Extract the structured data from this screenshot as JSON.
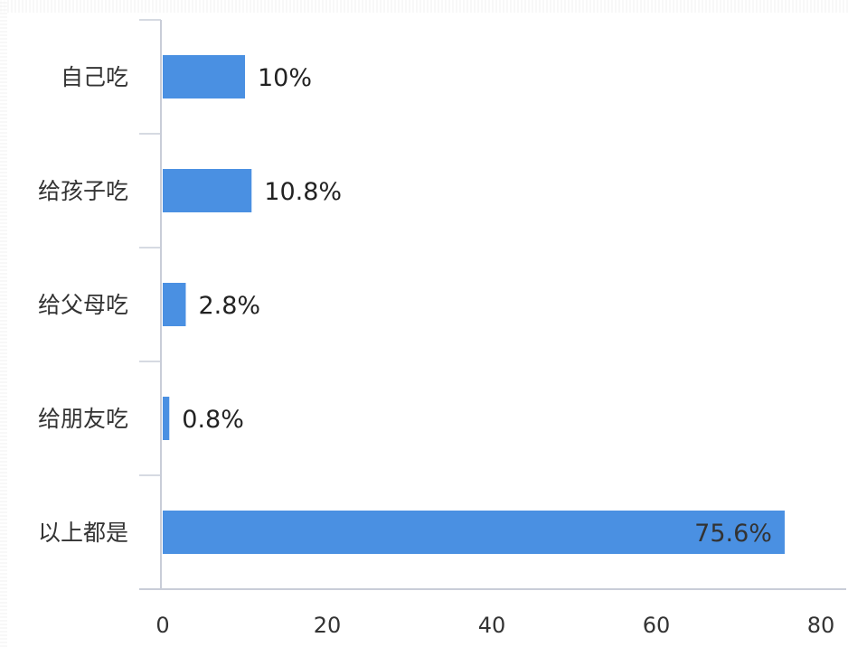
{
  "chart_data": {
    "type": "bar",
    "orientation": "horizontal",
    "title": "",
    "xlabel": "",
    "ylabel": "",
    "categories": [
      "自己吃",
      "给孩子吃",
      "给父母吃",
      "给朋友吃",
      "以上都是"
    ],
    "values": [
      10,
      10.8,
      2.8,
      0.8,
      75.6
    ],
    "data_labels": [
      "10%",
      "10.8%",
      "2.8%",
      "0.8%",
      "75.6%"
    ],
    "xlim": [
      0,
      80
    ],
    "x_ticks": [
      0,
      20,
      40,
      60,
      80
    ],
    "x_tick_labels": [
      "0",
      "20",
      "40",
      "60",
      "80"
    ],
    "grid": false,
    "legend": "none",
    "colors": {
      "bar": "#4a90e2",
      "axis": "#c9cdd8",
      "text": "#333333"
    }
  }
}
